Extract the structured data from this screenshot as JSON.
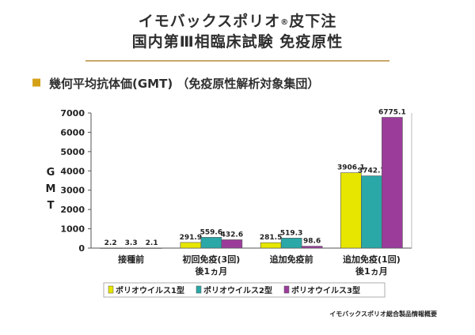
{
  "page": {
    "title_line1": "イモバックスポリオ",
    "title_reg": "®",
    "title_line1_tail": "皮下注",
    "title_line2": "国内第Ⅲ相臨床試験  免疫原性",
    "bullet": "■",
    "subtitle": "幾何平均抗体価(GMT) （免疫原性解析対象集団）",
    "footnote": "イモバックスポリオ総合製品情報概要"
  },
  "chart_data": {
    "type": "bar",
    "ylabel": "GMT",
    "ylim": [
      0,
      7000
    ],
    "yticks": [
      0,
      1000,
      2000,
      3000,
      4000,
      5000,
      6000,
      7000
    ],
    "categories": [
      [
        "接種前"
      ],
      [
        "初回免疫(3回)",
        "後1ヵ月"
      ],
      [
        "追加免疫前"
      ],
      [
        "追加免疫(1回)",
        "後1ヵ月"
      ]
    ],
    "series": [
      {
        "name": "ポリオウイルス1型",
        "color": "#e6e600",
        "values": [
          2.2,
          291.9,
          281.5,
          3906.1
        ],
        "labels": [
          "2.2",
          "291.9",
          "281.5",
          "3906.1"
        ]
      },
      {
        "name": "ポリオウイルス2型",
        "color": "#2aa7a7",
        "values": [
          3.3,
          559.6,
          519.3,
          3742.7
        ],
        "labels": [
          "3.3",
          "559.6",
          "519.3",
          "3742.7"
        ]
      },
      {
        "name": "ポリオウイルス3型",
        "color": "#9b3c9b",
        "values": [
          2.1,
          432.6,
          98.6,
          6775.1
        ],
        "labels": [
          "2.1",
          "432.6",
          "98.6",
          "6775.1"
        ]
      }
    ],
    "grid": false,
    "legend": "bottom"
  }
}
